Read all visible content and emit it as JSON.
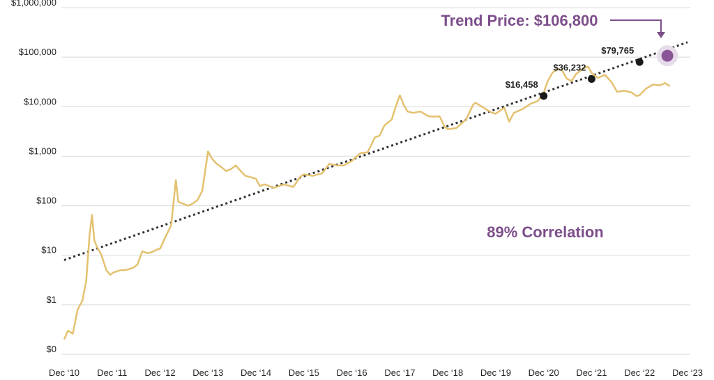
{
  "chart_data": {
    "type": "line",
    "title": "",
    "xlabel": "",
    "ylabel": "",
    "y_scale": "log",
    "ylim": [
      0.1,
      1000000
    ],
    "grid": true,
    "y_ticks": [
      {
        "value": 0.1,
        "label": "$0"
      },
      {
        "value": 1,
        "label": "$1"
      },
      {
        "value": 10,
        "label": "$10"
      },
      {
        "value": 100,
        "label": "$100"
      },
      {
        "value": 1000,
        "label": "$1,000"
      },
      {
        "value": 10000,
        "label": "$10,000"
      },
      {
        "value": 100000,
        "label": "$100,000"
      },
      {
        "value": 1000000,
        "label": "$1,000,000"
      }
    ],
    "x_ticks": [
      {
        "value": 2010.92,
        "label": "Dec ‘10"
      },
      {
        "value": 2011.92,
        "label": "Dec ‘11"
      },
      {
        "value": 2012.92,
        "label": "Dec ‘12"
      },
      {
        "value": 2013.92,
        "label": "Dec ‘13"
      },
      {
        "value": 2014.92,
        "label": "Dec ‘14"
      },
      {
        "value": 2015.92,
        "label": "Dec ‘15"
      },
      {
        "value": 2016.92,
        "label": "Dec ‘16"
      },
      {
        "value": 2017.92,
        "label": "Dec ‘17"
      },
      {
        "value": 2018.92,
        "label": "Dec ‘18"
      },
      {
        "value": 2019.92,
        "label": "Dec ‘19"
      },
      {
        "value": 2020.92,
        "label": "Dec ‘20"
      },
      {
        "value": 2021.92,
        "label": "Dec ‘21"
      },
      {
        "value": 2022.92,
        "label": "Dec ‘22"
      },
      {
        "value": 2023.92,
        "label": "Dec ‘23"
      }
    ],
    "price_series": {
      "color": "#e3c16f",
      "points": [
        [
          2010.92,
          0.2
        ],
        [
          2011.0,
          0.3
        ],
        [
          2011.1,
          0.26
        ],
        [
          2011.2,
          0.8
        ],
        [
          2011.3,
          1.2
        ],
        [
          2011.38,
          3
        ],
        [
          2011.45,
          25
        ],
        [
          2011.5,
          65
        ],
        [
          2011.55,
          20
        ],
        [
          2011.6,
          15
        ],
        [
          2011.7,
          10
        ],
        [
          2011.8,
          5
        ],
        [
          2011.88,
          4
        ],
        [
          2011.95,
          4.5
        ],
        [
          2012.1,
          5
        ],
        [
          2012.2,
          5
        ],
        [
          2012.35,
          5.5
        ],
        [
          2012.45,
          6.5
        ],
        [
          2012.55,
          12
        ],
        [
          2012.65,
          11
        ],
        [
          2012.75,
          11.5
        ],
        [
          2012.85,
          13
        ],
        [
          2012.92,
          13.5
        ],
        [
          2013.0,
          20
        ],
        [
          2013.15,
          40
        ],
        [
          2013.25,
          330
        ],
        [
          2013.3,
          120
        ],
        [
          2013.4,
          110
        ],
        [
          2013.5,
          100
        ],
        [
          2013.6,
          110
        ],
        [
          2013.7,
          130
        ],
        [
          2013.8,
          200
        ],
        [
          2013.92,
          1250
        ],
        [
          2014.0,
          900
        ],
        [
          2014.1,
          700
        ],
        [
          2014.2,
          600
        ],
        [
          2014.3,
          500
        ],
        [
          2014.4,
          550
        ],
        [
          2014.5,
          650
        ],
        [
          2014.6,
          500
        ],
        [
          2014.7,
          400
        ],
        [
          2014.8,
          380
        ],
        [
          2014.92,
          350
        ],
        [
          2015.0,
          250
        ],
        [
          2015.1,
          270
        ],
        [
          2015.3,
          230
        ],
        [
          2015.5,
          270
        ],
        [
          2015.7,
          240
        ],
        [
          2015.85,
          390
        ],
        [
          2015.92,
          430
        ],
        [
          2016.1,
          400
        ],
        [
          2016.3,
          450
        ],
        [
          2016.45,
          700
        ],
        [
          2016.6,
          650
        ],
        [
          2016.75,
          650
        ],
        [
          2016.92,
          800
        ],
        [
          2017.0,
          950
        ],
        [
          2017.1,
          1150
        ],
        [
          2017.25,
          1200
        ],
        [
          2017.4,
          2400
        ],
        [
          2017.5,
          2600
        ],
        [
          2017.6,
          4200
        ],
        [
          2017.75,
          5500
        ],
        [
          2017.85,
          11000
        ],
        [
          2017.92,
          17000
        ],
        [
          2018.0,
          11000
        ],
        [
          2018.08,
          8000
        ],
        [
          2018.2,
          7500
        ],
        [
          2018.35,
          8000
        ],
        [
          2018.5,
          6500
        ],
        [
          2018.6,
          6300
        ],
        [
          2018.75,
          6400
        ],
        [
          2018.85,
          4000
        ],
        [
          2018.92,
          3500
        ],
        [
          2019.1,
          3700
        ],
        [
          2019.3,
          5500
        ],
        [
          2019.45,
          11000
        ],
        [
          2019.5,
          12000
        ],
        [
          2019.6,
          10500
        ],
        [
          2019.75,
          8500
        ],
        [
          2019.85,
          7500
        ],
        [
          2019.92,
          7200
        ],
        [
          2020.1,
          9500
        ],
        [
          2020.2,
          5000
        ],
        [
          2020.3,
          7500
        ],
        [
          2020.5,
          9200
        ],
        [
          2020.65,
          11500
        ],
        [
          2020.8,
          13000
        ],
        [
          2020.92,
          19000
        ],
        [
          2021.0,
          32000
        ],
        [
          2021.1,
          48000
        ],
        [
          2021.2,
          58000
        ],
        [
          2021.3,
          55000
        ],
        [
          2021.4,
          37000
        ],
        [
          2021.5,
          33000
        ],
        [
          2021.6,
          46000
        ],
        [
          2021.75,
          60000
        ],
        [
          2021.85,
          64000
        ],
        [
          2021.92,
          48000
        ],
        [
          2022.05,
          38000
        ],
        [
          2022.2,
          44000
        ],
        [
          2022.35,
          30000
        ],
        [
          2022.45,
          20000
        ],
        [
          2022.6,
          21000
        ],
        [
          2022.75,
          19500
        ],
        [
          2022.85,
          16500
        ],
        [
          2022.92,
          17000
        ],
        [
          2023.05,
          23000
        ],
        [
          2023.2,
          28000
        ],
        [
          2023.35,
          27000
        ],
        [
          2023.45,
          30000
        ],
        [
          2023.55,
          26000
        ]
      ]
    },
    "trend_series": {
      "color": "#333333",
      "style": "dotted",
      "points": [
        [
          2010.92,
          8
        ],
        [
          2023.92,
          200000
        ]
      ]
    },
    "markers": [
      {
        "x": 2020.92,
        "y": 16458,
        "label": "$16,458",
        "color": "#1a1a1a"
      },
      {
        "x": 2021.92,
        "y": 36232,
        "label": "$36,232",
        "color": "#1a1a1a"
      },
      {
        "x": 2022.92,
        "y": 79765,
        "label": "$79,765",
        "color": "#1a1a1a"
      }
    ],
    "highlight": {
      "x": 2023.5,
      "y": 106800,
      "color": "#8a5596",
      "halo_color": "#e6dcea"
    },
    "annotations": {
      "trend_price": "Trend Price: $106,800",
      "correlation": "89% Correlation",
      "color": "#7d4e8b"
    }
  }
}
